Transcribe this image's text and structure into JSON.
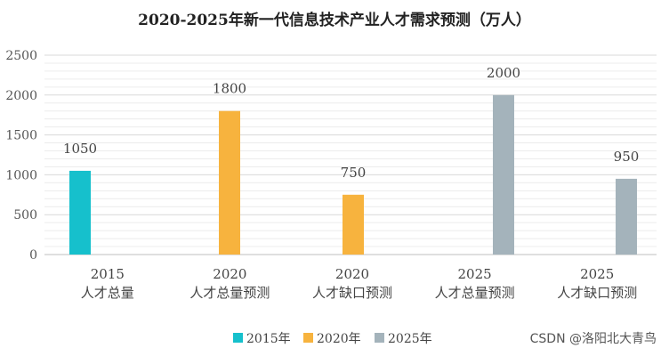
{
  "chart_data": {
    "type": "bar",
    "title": "2020-2025年新一代信息技术产业人才需求预测（万人）",
    "categories": [
      [
        "2015",
        "人才总量"
      ],
      [
        "2020",
        "人才总量预测"
      ],
      [
        "2020",
        "人才缺口预测"
      ],
      [
        "2025",
        "人才总量预测"
      ],
      [
        "2025",
        "人才缺口预测"
      ]
    ],
    "series": [
      {
        "name": "2015年",
        "color": "#16c0cc",
        "values": [
          1050,
          null,
          null,
          null,
          null
        ]
      },
      {
        "name": "2020年",
        "color": "#f7b33e",
        "values": [
          null,
          1800,
          750,
          null,
          null
        ]
      },
      {
        "name": "2025年",
        "color": "#a4b3bb",
        "values": [
          null,
          null,
          null,
          2000,
          950
        ]
      }
    ],
    "data_labels": [
      "1050",
      "1800",
      "750",
      "2000",
      "950"
    ],
    "ylim": [
      0,
      2500
    ],
    "yticks": [
      0,
      500,
      1000,
      1500,
      2000,
      2500
    ],
    "grid": true,
    "legend_position": "bottom"
  },
  "watermark": "CSDN @洛阳北大青鸟"
}
